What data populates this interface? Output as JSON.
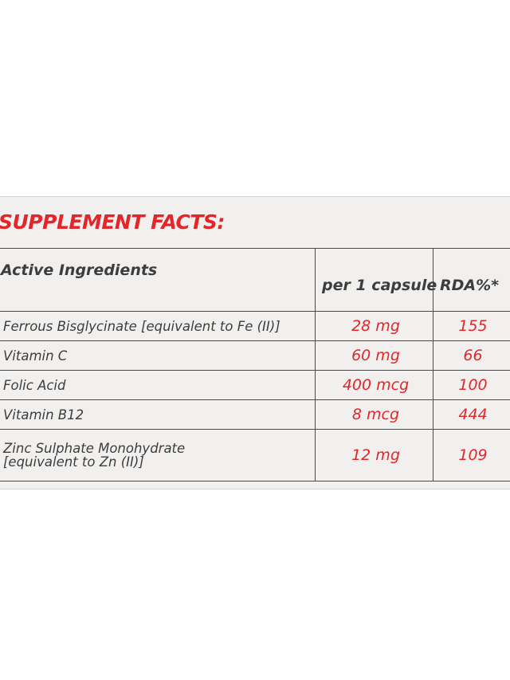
{
  "label": {
    "title": "SUPPLEMENT FACTS:",
    "columns": {
      "ingredient": "Active Ingredients",
      "amount": "per 1 capsule",
      "rda": "RDA%*"
    },
    "rows": [
      {
        "name": "Ferrous Bisglycinate [equivalent to Fe (II)]",
        "name_line2": "",
        "amount": "28 mg",
        "rda": "155"
      },
      {
        "name": "Vitamin C",
        "name_line2": "",
        "amount": "60 mg",
        "rda": "66"
      },
      {
        "name": "Folic Acid",
        "name_line2": "",
        "amount": "400 mcg",
        "rda": "100"
      },
      {
        "name": "Vitamin B12",
        "name_line2": "",
        "amount": "8 mcg",
        "rda": "444"
      },
      {
        "name": "Zinc Sulphate Monohydrate",
        "name_line2": "[equivalent to Zn (II)]",
        "amount": "12 mg",
        "rda": "109"
      }
    ],
    "colors": {
      "accent_red": "#e3262a",
      "text_gray": "#3d3d3d",
      "panel_background": "#f1f0ef"
    }
  }
}
